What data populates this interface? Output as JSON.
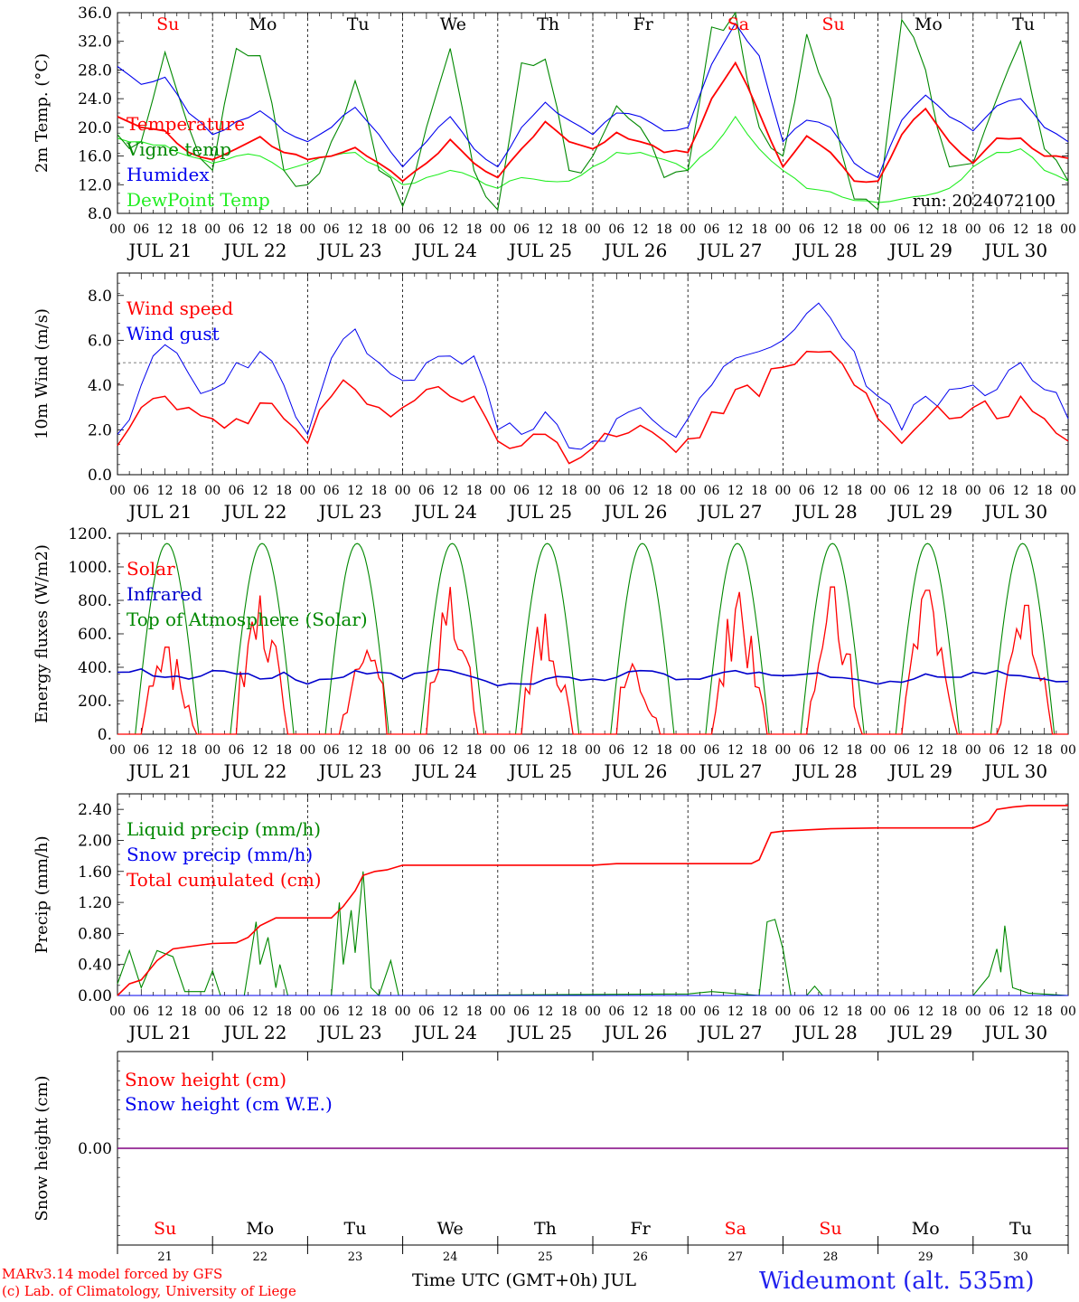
{
  "footer": {
    "model_line": "MARv3.14 model forced by GFS",
    "credit_line": "(c) Lab. of Climatology, University of Liege",
    "time_axis": "Time UTC (GMT+0h) JUL",
    "station": "Wideumont (alt. 535m)"
  },
  "colors": {
    "temperature": "#ff0000",
    "vigne": "#008800",
    "humidex": "#0000ee",
    "dewpoint": "#22ee22",
    "wind_speed": "#ff0000",
    "wind_gust": "#0000ee",
    "solar": "#ff0000",
    "infrared": "#0000cc",
    "toa": "#008800",
    "weekend_day": "#ff0000",
    "weekday": "#000000",
    "snow_line": "#800080"
  },
  "chart_data": [
    {
      "type": "line",
      "ylabel": "2m Temp. (°C)",
      "ylim": [
        8,
        36
      ],
      "yticks": [
        "8.0",
        "12.0",
        "16.0",
        "20.0",
        "24.0",
        "28.0",
        "32.0",
        "36.0"
      ],
      "annotation": "run: 2024072100",
      "day_names": [
        "Su",
        "Mo",
        "Tu",
        "We",
        "Th",
        "Fr",
        "Sa",
        "Su",
        "Mo",
        "Tu"
      ],
      "date_labels": [
        "JUL 21",
        "JUL 22",
        "JUL 23",
        "JUL 24",
        "JUL 25",
        "JUL 26",
        "JUL 27",
        "JUL 28",
        "JUL 29",
        "JUL 30"
      ],
      "hour_labels": [
        "00",
        "06",
        "12",
        "18"
      ],
      "x_hours": [
        0,
        6,
        12,
        18,
        24,
        30,
        36,
        42,
        48,
        54,
        60,
        66,
        72,
        78,
        84,
        90,
        96,
        102,
        108,
        114,
        120,
        126,
        132,
        138,
        144,
        150,
        156,
        162,
        168,
        174,
        180,
        186,
        192,
        198,
        204,
        210,
        216,
        222,
        228,
        234,
        240
      ],
      "series": [
        {
          "name": "Temperature",
          "color_key": "temperature",
          "values": [
            21.5,
            20,
            19.5,
            16.5,
            15.5,
            17,
            18.7,
            16.5,
            15.5,
            16,
            17.2,
            15,
            12.5,
            15,
            18.3,
            15,
            13,
            17,
            20.8,
            18,
            17,
            19.3,
            18,
            16.5,
            16.5,
            24,
            29,
            22,
            14.5,
            18.8,
            16.5,
            12.5,
            12.5,
            19,
            22.6,
            18,
            15,
            18.5,
            18.5,
            16,
            15.7
          ]
        },
        {
          "name": "Vigne temp",
          "color_key": "vigne",
          "values": [
            19,
            18,
            30.5,
            20,
            14,
            31,
            30,
            14,
            12,
            18,
            26.5,
            14,
            9,
            20,
            31,
            14,
            8.5,
            29,
            29.5,
            14,
            16,
            23,
            20,
            13,
            14,
            34,
            36,
            20,
            16,
            33,
            24,
            10,
            8.5,
            35,
            28,
            14.5,
            15,
            24,
            32,
            17,
            12.5
          ]
        },
        {
          "name": "Humidex",
          "color_key": "humidex",
          "values": [
            28.5,
            26,
            27,
            22,
            19,
            20.8,
            22.3,
            19.5,
            18,
            20,
            22.8,
            19,
            14.5,
            18,
            21.5,
            17,
            14.5,
            20,
            23.5,
            21,
            19,
            22,
            21.5,
            19.5,
            20,
            28.8,
            34.5,
            30,
            18,
            21,
            20,
            15,
            13,
            21,
            24.5,
            21.5,
            19.5,
            23,
            24,
            20,
            18
          ]
        },
        {
          "name": "DewPoint Temp",
          "color_key": "dewpoint",
          "values": [
            18.5,
            18,
            17.5,
            16,
            15,
            16,
            16,
            14,
            15,
            16,
            16.5,
            14.5,
            12,
            13,
            14,
            13,
            11.5,
            13,
            12.5,
            12.5,
            14.5,
            16.5,
            16.5,
            15.5,
            14,
            17,
            21.5,
            17,
            14,
            11.5,
            11,
            9.8,
            9.5,
            10,
            10.5,
            11.5,
            14.5,
            16.5,
            17,
            14,
            12.5
          ]
        }
      ]
    },
    {
      "type": "line",
      "ylabel": "10m Wind (m/s)",
      "ylim": [
        0,
        9
      ],
      "yticks": [
        "0.0",
        "2.0",
        "4.0",
        "6.0",
        "8.0"
      ],
      "reference_line": 5,
      "date_labels": [
        "JUL 21",
        "JUL 22",
        "JUL 23",
        "JUL 24",
        "JUL 25",
        "JUL 26",
        "JUL 27",
        "JUL 28",
        "JUL 29",
        "JUL 30"
      ],
      "hour_labels": [
        "00",
        "06",
        "12",
        "18"
      ],
      "x_hours": [
        0,
        6,
        12,
        18,
        24,
        30,
        36,
        42,
        48,
        54,
        60,
        66,
        72,
        78,
        84,
        90,
        96,
        102,
        108,
        114,
        120,
        126,
        132,
        138,
        144,
        150,
        156,
        162,
        168,
        174,
        180,
        186,
        192,
        198,
        204,
        210,
        216,
        222,
        228,
        234,
        240
      ],
      "series": [
        {
          "name": "Wind speed",
          "color_key": "wind_speed",
          "values": [
            1.3,
            3,
            3.5,
            3,
            2.5,
            2.5,
            3.2,
            2.5,
            1.4,
            3.5,
            3.8,
            3,
            3,
            3.8,
            3.5,
            3.5,
            1.5,
            1.3,
            1.8,
            0.5,
            1.2,
            1.7,
            2.2,
            1.5,
            1.6,
            2.8,
            3.8,
            3.5,
            4.8,
            5.5,
            5.5,
            4,
            2.5,
            1.4,
            2.5,
            2.5,
            3,
            2.5,
            3.5,
            2.5,
            1.5
          ]
        },
        {
          "name": "Wind gust",
          "color_key": "wind_gust",
          "values": [
            1.8,
            4,
            5.8,
            4.5,
            3.8,
            5,
            5.5,
            4,
            1.8,
            5.2,
            6.5,
            5,
            4.2,
            5,
            5.3,
            5.3,
            2,
            1.8,
            2.8,
            1.2,
            1.5,
            2.5,
            3,
            2,
            2.5,
            4,
            5.2,
            5.5,
            6,
            7.2,
            7,
            5.5,
            3.5,
            2,
            3.5,
            3.8,
            4,
            3.8,
            5,
            3.8,
            2.5
          ]
        }
      ]
    },
    {
      "type": "line",
      "ylabel": "Energy fluxes (W/m2)",
      "ylim": [
        0,
        1200
      ],
      "yticks": [
        "0.",
        "200.",
        "400.",
        "600.",
        "800.",
        "1000.",
        "1200."
      ],
      "date_labels": [
        "JUL 21",
        "JUL 22",
        "JUL 23",
        "JUL 24",
        "JUL 25",
        "JUL 26",
        "JUL 27",
        "JUL 28",
        "JUL 29",
        "JUL 30"
      ],
      "hour_labels": [
        "00",
        "06",
        "12",
        "18"
      ],
      "series": [
        {
          "name": "Solar",
          "color_key": "solar",
          "peak_hour": [
            12.5,
            12,
            15,
            12,
            12,
            10,
            13,
            12.5,
            12.5,
            13.5
          ],
          "peak_value": [
            520,
            830,
            500,
            880,
            720,
            420,
            850,
            880,
            860,
            770
          ]
        },
        {
          "name": "Infrared",
          "color_key": "infrared",
          "values": [
            370,
            390,
            340,
            330,
            380,
            360,
            330,
            370,
            300,
            330,
            380,
            370,
            330,
            370,
            380,
            340,
            290,
            300,
            330,
            340,
            330,
            340,
            380,
            360,
            330,
            350,
            380,
            370,
            350,
            360,
            340,
            330,
            300,
            310,
            360,
            340,
            370,
            380,
            350,
            330,
            315
          ]
        },
        {
          "name": "Top of Atmosphere (Solar)",
          "color_key": "toa",
          "daily_peak": 1140,
          "sunrise_hour": 4.5,
          "sunset_hour": 20.5
        }
      ]
    },
    {
      "type": "line",
      "ylabel": "Precip (mm/h)",
      "ylim": [
        0,
        2.6
      ],
      "yticks": [
        "0.00",
        "0.40",
        "0.80",
        "1.20",
        "1.60",
        "2.00",
        "2.40"
      ],
      "date_labels": [
        "JUL 21",
        "JUL 22",
        "JUL 23",
        "JUL 24",
        "JUL 25",
        "JUL 26",
        "JUL 27",
        "JUL 28",
        "JUL 29",
        "JUL 30"
      ],
      "hour_labels": [
        "00",
        "06",
        "12",
        "18"
      ],
      "series": [
        {
          "name": "Liquid precip (mm/h)",
          "color_key": "vigne",
          "points": [
            [
              0,
              0.15
            ],
            [
              3,
              0.58
            ],
            [
              6,
              0.1
            ],
            [
              10,
              0.58
            ],
            [
              14,
              0.5
            ],
            [
              17,
              0.05
            ],
            [
              22,
              0.05
            ],
            [
              24,
              0.32
            ],
            [
              26,
              0
            ],
            [
              32,
              0
            ],
            [
              35,
              0.95
            ],
            [
              36,
              0.4
            ],
            [
              38,
              0.75
            ],
            [
              40,
              0.1
            ],
            [
              41,
              0.4
            ],
            [
              43,
              0
            ],
            [
              54,
              0
            ],
            [
              56,
              1.2
            ],
            [
              57,
              0.4
            ],
            [
              59,
              1.1
            ],
            [
              60,
              0.55
            ],
            [
              62,
              1.6
            ],
            [
              64,
              0.1
            ],
            [
              66,
              0
            ],
            [
              69,
              0.45
            ],
            [
              71,
              0
            ],
            [
              144,
              0.02
            ],
            [
              150,
              0.05
            ],
            [
              162,
              0
            ],
            [
              164,
              0.95
            ],
            [
              166,
              0.98
            ],
            [
              168,
              0.6
            ],
            [
              170,
              0
            ],
            [
              174,
              0
            ],
            [
              176,
              0.12
            ],
            [
              178,
              0
            ],
            [
              216,
              0
            ],
            [
              220,
              0.25
            ],
            [
              222,
              0.6
            ],
            [
              223,
              0.3
            ],
            [
              224,
              0.9
            ],
            [
              226,
              0.1
            ],
            [
              230,
              0.03
            ],
            [
              240,
              0
            ]
          ]
        },
        {
          "name": "Snow precip (mm/h)",
          "color_key": "wind_gust",
          "points": [
            [
              0,
              0
            ],
            [
              240,
              0
            ]
          ]
        },
        {
          "name": "Total cumulated (cm)",
          "color_key": "temperature",
          "points": [
            [
              0,
              0
            ],
            [
              3,
              0.15
            ],
            [
              6,
              0.2
            ],
            [
              10,
              0.45
            ],
            [
              14,
              0.6
            ],
            [
              18,
              0.63
            ],
            [
              24,
              0.67
            ],
            [
              30,
              0.68
            ],
            [
              33,
              0.75
            ],
            [
              36,
              0.9
            ],
            [
              40,
              1.0
            ],
            [
              48,
              1.0
            ],
            [
              54,
              1.0
            ],
            [
              57,
              1.15
            ],
            [
              60,
              1.35
            ],
            [
              62,
              1.55
            ],
            [
              65,
              1.6
            ],
            [
              68,
              1.62
            ],
            [
              72,
              1.68
            ],
            [
              120,
              1.68
            ],
            [
              126,
              1.7
            ],
            [
              160,
              1.7
            ],
            [
              162,
              1.75
            ],
            [
              165,
              2.1
            ],
            [
              168,
              2.12
            ],
            [
              180,
              2.15
            ],
            [
              192,
              2.16
            ],
            [
              216,
              2.16
            ],
            [
              218,
              2.2
            ],
            [
              220,
              2.25
            ],
            [
              222,
              2.4
            ],
            [
              226,
              2.43
            ],
            [
              230,
              2.45
            ],
            [
              240,
              2.45
            ]
          ]
        }
      ]
    },
    {
      "type": "line",
      "ylabel": "Snow height (cm)",
      "ylim": [
        -1,
        1
      ],
      "yticks": [
        "0.00"
      ],
      "day_names": [
        "Su",
        "Mo",
        "Tu",
        "We",
        "Th",
        "Fr",
        "Sa",
        "Su",
        "Mo",
        "Tu"
      ],
      "day_numbers": [
        "21",
        "22",
        "23",
        "24",
        "25",
        "26",
        "27",
        "28",
        "29",
        "30"
      ],
      "series": [
        {
          "name": "Snow height (cm)",
          "color_key": "temperature",
          "points": [
            [
              0,
              0
            ],
            [
              240,
              0
            ]
          ]
        },
        {
          "name": "Snow height (cm W.E.)",
          "color_key": "wind_gust",
          "points": [
            [
              0,
              0
            ],
            [
              240,
              0
            ]
          ]
        }
      ]
    }
  ]
}
